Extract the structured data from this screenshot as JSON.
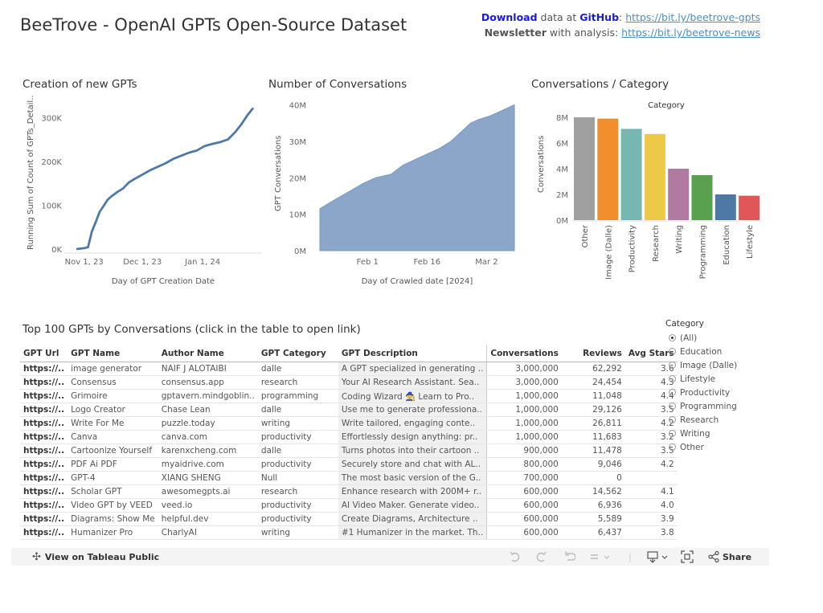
{
  "header": {
    "title": "BeeTrove - OpenAI GPTs Open-Source Dataset",
    "download_word": "Download",
    "download_mid": " data at ",
    "github_word": "GitHub",
    "colon": ": ",
    "download_link": "https://bit.ly/beetrove-gpts",
    "newsletter_word": "Newsletter",
    "newsletter_mid": " with analysis: ",
    "newsletter_link": "https://bit.ly/beetrove-news",
    "link_color": "#4a90c8",
    "brand_color": "#1a1adb"
  },
  "chart_data": [
    {
      "type": "line",
      "title": "Creation of new GPTs",
      "xlabel": "Day of GPT Creation Date",
      "ylabel": "Running Sum of Count of GPTs_Detail...",
      "x_ticks": [
        "Nov 1, 23",
        "Dec 1, 23",
        "Jan 1, 24"
      ],
      "y_ticks": [
        "0K",
        "100K",
        "200K",
        "300K"
      ],
      "ylim": [
        0,
        330000
      ],
      "x": [
        "2023-10-28",
        "2023-11-01",
        "2023-11-03",
        "2023-11-05",
        "2023-11-07",
        "2023-11-09",
        "2023-11-11",
        "2023-11-13",
        "2023-11-15",
        "2023-11-18",
        "2023-11-21",
        "2023-11-24",
        "2023-11-27",
        "2023-12-01",
        "2023-12-05",
        "2023-12-09",
        "2023-12-13",
        "2023-12-17",
        "2023-12-21",
        "2023-12-25",
        "2023-12-29",
        "2024-01-02",
        "2024-01-06",
        "2024-01-10",
        "2024-01-14",
        "2024-01-18",
        "2024-01-21",
        "2024-01-24",
        "2024-01-27"
      ],
      "series": [
        {
          "values": [
            0,
            2000,
            4000,
            40000,
            62000,
            85000,
            98000,
            112000,
            120000,
            130000,
            138000,
            152000,
            160000,
            170000,
            180000,
            188000,
            196000,
            206000,
            213000,
            220000,
            225000,
            235000,
            240000,
            244000,
            250000,
            268000,
            285000,
            305000,
            322000
          ],
          "color": "#4e79a7"
        }
      ]
    },
    {
      "type": "area",
      "title": "Number of Conversations",
      "xlabel": "Day of Crawled date [2024]",
      "ylabel": "GPT Conversations",
      "x_ticks": [
        "Feb 1",
        "Feb 16",
        "Mar 2"
      ],
      "y_ticks": [
        "0M",
        "10M",
        "20M",
        "30M",
        "40M"
      ],
      "ylim": [
        0,
        41000000
      ],
      "x": [
        "2024-01-20",
        "2024-01-23",
        "2024-01-27",
        "2024-01-31",
        "2024-02-03",
        "2024-02-07",
        "2024-02-10",
        "2024-02-13",
        "2024-02-16",
        "2024-02-19",
        "2024-02-22",
        "2024-02-25",
        "2024-02-27",
        "2024-02-29",
        "2024-03-03",
        "2024-03-06",
        "2024-03-09"
      ],
      "series": [
        {
          "values": [
            11500000,
            13500000,
            16000000,
            18500000,
            20000000,
            21000000,
            23500000,
            25000000,
            26500000,
            28000000,
            30000000,
            33000000,
            35000000,
            36000000,
            37000000,
            38500000,
            40000000
          ],
          "color": "#8ba6c8"
        }
      ]
    },
    {
      "type": "bar",
      "title": "Conversations / Category",
      "legend_title": "Category",
      "ylabel": "Conversations",
      "y_ticks": [
        "0M",
        "2M",
        "4M",
        "6M",
        "8M"
      ],
      "ylim": [
        0,
        8500000
      ],
      "categories": [
        "Other",
        "Image (Dalle)",
        "Productivity",
        "Research",
        "Writing",
        "Programming",
        "Education",
        "Lifestyle"
      ],
      "values": [
        8000000,
        7900000,
        7100000,
        6700000,
        4000000,
        3500000,
        2000000,
        1900000
      ],
      "colors": [
        "#a0a0a0",
        "#f28e2b",
        "#76b7b2",
        "#edc948",
        "#b07aa1",
        "#59a14f",
        "#4e79a7",
        "#e15759"
      ]
    }
  ],
  "table": {
    "title": "Top 100 GPTs by Conversations (click in the table to open link)",
    "columns": [
      "GPT Url",
      "GPT Name",
      "Author Name",
      "GPT Category",
      "GPT Description",
      "Conversations",
      "Reviews",
      "Avg Stars"
    ],
    "rows": [
      [
        "https://..",
        "image generator",
        "NAIF J ALOTAIBI",
        "dalle",
        "A GPT specialized in generating ..",
        "3,000,000",
        "62,292",
        "3.6"
      ],
      [
        "https://..",
        "Consensus",
        "consensus.app",
        "research",
        "Your AI Research Assistant. Sea..",
        "3,000,000",
        "24,454",
        "4.3"
      ],
      [
        "https://..",
        "Grimoire",
        "gptavern.mindgoblin..",
        "programming",
        "Coding Wizard 🧙 Learn to Pro..",
        "1,000,000",
        "11,048",
        "4.4"
      ],
      [
        "https://..",
        "Logo Creator",
        "Chase Lean",
        "dalle",
        "Use me to generate professiona..",
        "1,000,000",
        "29,126",
        "3.5"
      ],
      [
        "https://..",
        "Write For Me",
        "puzzle.today",
        "writing",
        "Write tailored, engaging conte..",
        "1,000,000",
        "26,811",
        "4.2"
      ],
      [
        "https://..",
        "Canva",
        "canva.com",
        "productivity",
        "Effortlessly design anything: pr..",
        "1,000,000",
        "11,683",
        "3.2"
      ],
      [
        "https://..",
        "Cartoonize Yourself",
        "karenxcheng.com",
        "dalle",
        "Turns photos into their cartoon ..",
        "900,000",
        "11,478",
        "3.5"
      ],
      [
        "https://..",
        "PDF Ai PDF",
        "myaidrive.com",
        "productivity",
        "Securely store and chat with AL..",
        "800,000",
        "9,046",
        "4.2"
      ],
      [
        "https://..",
        "GPT-4",
        "XIANG SHENG",
        "Null",
        "The most basic version of the G..",
        "700,000",
        "0",
        ""
      ],
      [
        "https://..",
        "Scholar GPT",
        "awesomegpts.ai",
        "research",
        "Enhance research with 200M+ r..",
        "600,000",
        "14,562",
        "4.1"
      ],
      [
        "https://..",
        "Video GPT by VEED",
        "veed.io",
        "productivity",
        "AI Video Maker. Generate video..",
        "600,000",
        "6,936",
        "4.0"
      ],
      [
        "https://..",
        "Diagrams: Show Me",
        "helpful.dev",
        "productivity",
        "Create Diagrams, Architecture ..",
        "600,000",
        "5,589",
        "3.9"
      ],
      [
        "https://..",
        "Humanizer Pro",
        "CharlyAI",
        "writing",
        "#1 Humanizer in the market. Th..",
        "600,000",
        "6,437",
        "3.8"
      ]
    ]
  },
  "filter": {
    "title": "Category",
    "options": [
      "(All)",
      "Education",
      "Image (Dalle)",
      "Lifestyle",
      "Productivity",
      "Programming",
      "Research",
      "Writing",
      "Other"
    ],
    "selected": "(All)"
  },
  "toolbar": {
    "view_label": "View on Tableau Public",
    "share_label": "Share",
    "icons": [
      "tableau-logo-icon",
      "undo-icon",
      "redo-icon",
      "revert-icon",
      "refresh-icon",
      "download-icon",
      "fullscreen-icon",
      "share-icon"
    ]
  }
}
